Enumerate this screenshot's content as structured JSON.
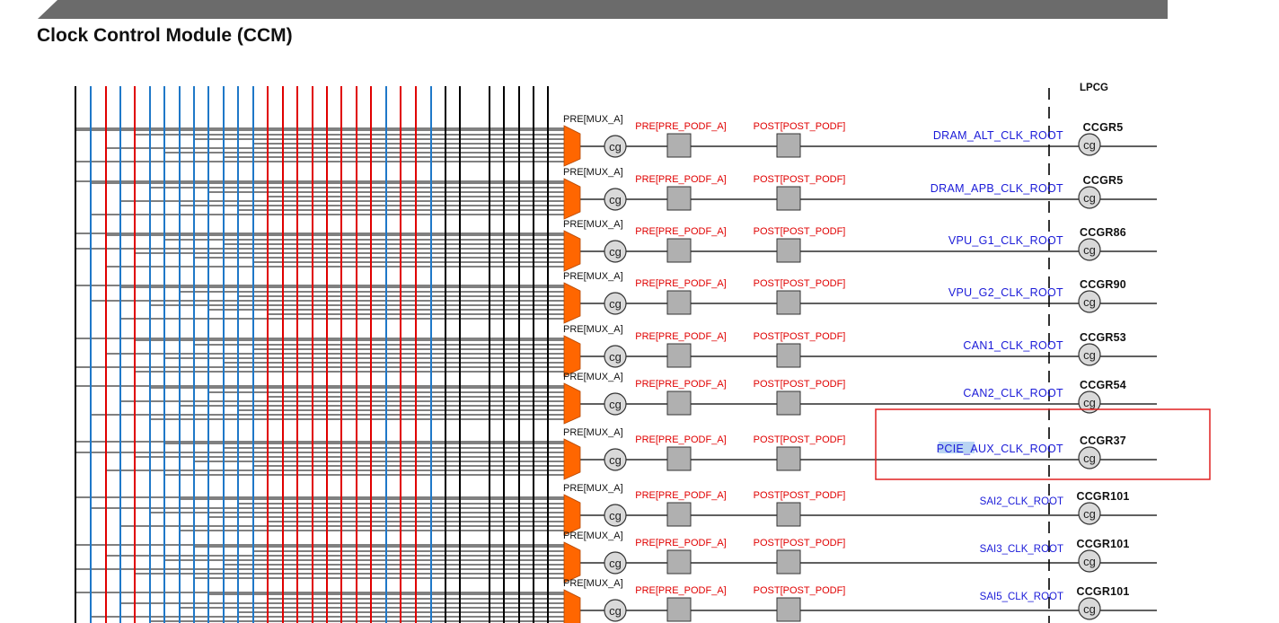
{
  "page": {
    "title": "Clock Control Module (CCM)"
  },
  "colors": {
    "header_bar": "#6b6b6b",
    "mux": "#ff6600",
    "bus_red": "#e00000",
    "bus_blue": "#1f78c8",
    "bus_black": "#000000",
    "divider_box": "#b0b0b0",
    "cg_fill": "#d9d9d9",
    "root_label": "#1a1ad8",
    "highlight_box": "#e02020",
    "text_highlight": "#b9d4f2"
  },
  "lpcg_label": "LPCG",
  "bus_line_colors": [
    "black",
    "blue",
    "red",
    "blue",
    "red",
    "blue",
    "blue",
    "blue",
    "blue",
    "blue",
    "blue",
    "blue",
    "blue",
    "red",
    "red",
    "red",
    "red",
    "red",
    "red",
    "red",
    "red",
    "blue",
    "red",
    "red",
    "blue",
    "black",
    "black",
    "black",
    "black",
    "black"
  ],
  "rows": [
    {
      "mux": "PRE[MUX_A]",
      "pre": "PRE[PRE_PODF_A]",
      "post": "POST[POST_PODF]",
      "root": "DRAM_ALT_CLK_ROOT",
      "ccgr": "CCGR5",
      "cg": "cg"
    },
    {
      "mux": "PRE[MUX_A]",
      "pre": "PRE[PRE_PODF_A]",
      "post": "POST[POST_PODF]",
      "root": "DRAM_APB_CLK_ROOT",
      "ccgr": "CCGR5",
      "cg": "cg"
    },
    {
      "mux": "PRE[MUX_A]",
      "pre": "PRE[PRE_PODF_A]",
      "post": "POST[POST_PODF]",
      "root": "VPU_G1_CLK_ROOT",
      "ccgr": "CCGR86",
      "cg": "cg"
    },
    {
      "mux": "PRE[MUX_A]",
      "pre": "PRE[PRE_PODF_A]",
      "post": "POST[POST_PODF]",
      "root": "VPU_G2_CLK_ROOT",
      "ccgr": "CCGR90",
      "cg": "cg"
    },
    {
      "mux": "PRE[MUX_A]",
      "pre": "PRE[PRE_PODF_A]",
      "post": "POST[POST_PODF]",
      "root": "CAN1_CLK_ROOT",
      "ccgr": "CCGR53",
      "cg": "cg"
    },
    {
      "mux": "PRE[MUX_A]",
      "pre": "PRE[PRE_PODF_A]",
      "post": "POST[POST_PODF]",
      "root": "CAN2_CLK_ROOT",
      "ccgr": "CCGR54",
      "cg": "cg"
    },
    {
      "mux": "PRE[MUX_A]",
      "pre": "PRE[PRE_PODF_A]",
      "post": "POST[POST_PODF]",
      "root": "PCIE_AUX_CLK_ROOT",
      "root_highlight": "PCIE",
      "ccgr": "CCGR37",
      "cg": "cg",
      "selected": true
    },
    {
      "mux": "PRE[MUX_A]",
      "pre": "PRE[PRE_PODF_A]",
      "post": "POST[POST_PODF]",
      "root": "SAI2_CLK_ROOT",
      "ccgr": "CCGR101",
      "cg": "cg"
    },
    {
      "mux": "PRE[MUX_A]",
      "pre": "PRE[PRE_PODF_A]",
      "post": "POST[POST_PODF]",
      "root": "SAI3_CLK_ROOT",
      "ccgr": "CCGR101",
      "cg": "cg"
    },
    {
      "mux": "PRE[MUX_A]",
      "pre": "PRE[PRE_PODF_A]",
      "post": "POST[POST_PODF]",
      "root": "SAI5_CLK_ROOT",
      "ccgr": "CCGR101",
      "cg": "cg"
    }
  ]
}
